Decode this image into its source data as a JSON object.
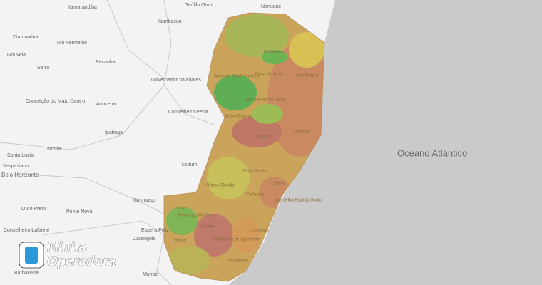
{
  "map": {
    "ocean_label": "Oceano Atlântico",
    "labels": [
      "Itamarandiba",
      "Teófilo Otoni",
      "Nanuque",
      "Itambacuri",
      "Diamantina",
      "Rio Vermelho",
      "Gouveia",
      "Serro",
      "Peçanha",
      "Governador Valadares",
      "Conceição do Mato Dentro",
      "Açucena",
      "Conselheiro Pena",
      "Ipatinga",
      "Itabira",
      "Santa Luzia",
      "Vespasiano",
      "Belo Horizonte",
      "Mutum",
      "Manhuaçu",
      "Ouro Preto",
      "Ponte Nova",
      "Conselheiro Lafaiete",
      "Espera Feliz",
      "Carangola",
      "Barbacena",
      "Muriaé"
    ],
    "cities": [
      "Pinheiros",
      "Barra de São Francisco",
      "Nova Venécia",
      "São Mateus",
      "São Gabriel da Palha",
      "Baixo Guandu",
      "Colatina",
      "Linhares",
      "Afonso Cláudio",
      "Santa Teresa",
      "Serra",
      "Cariacica",
      "Vila Velha Espírito Santo",
      "Iúna",
      "Domingos Martins",
      "Alegre",
      "Castelo",
      "Cachoeiro de Itapemirim",
      "Guarapari",
      "Marataízes"
    ],
    "logo": {
      "line1": "Minha",
      "line2": "Operadora"
    }
  }
}
